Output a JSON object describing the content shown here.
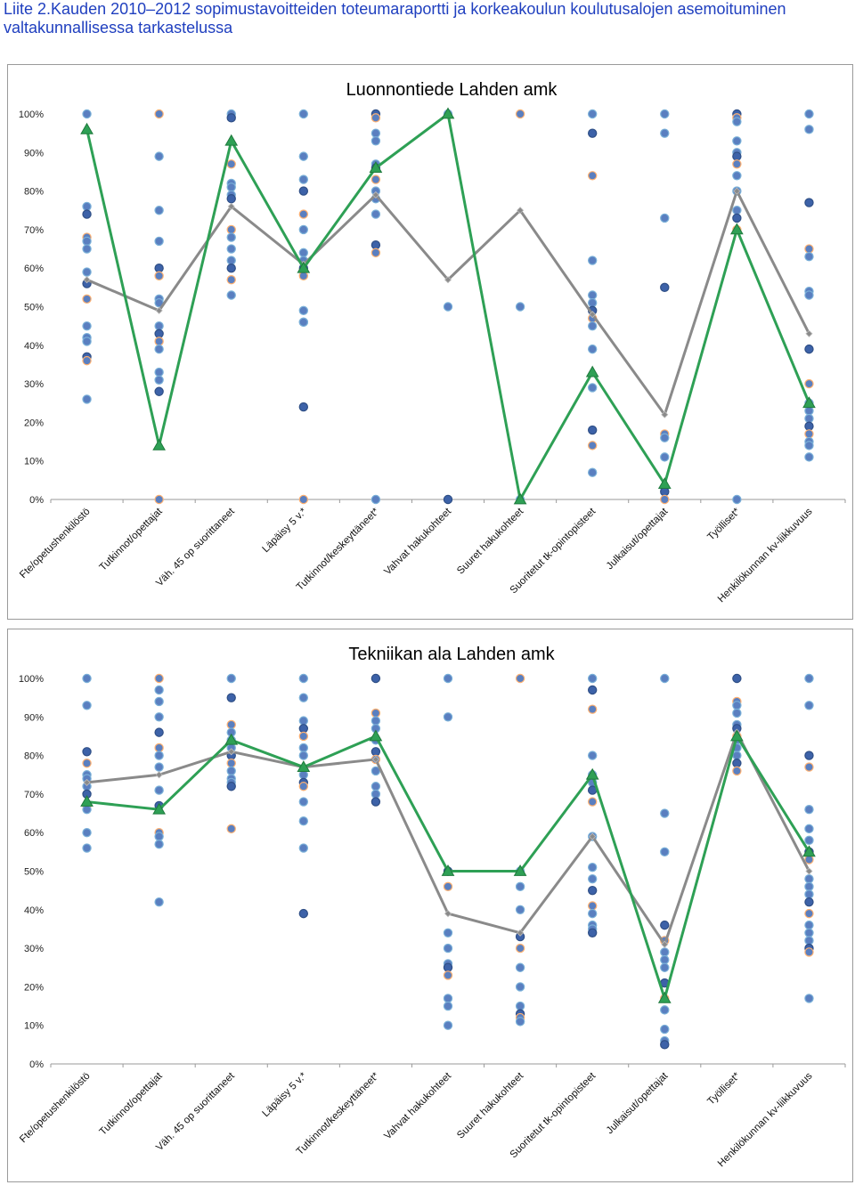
{
  "document": {
    "title_line1": "Liite 2.Kauden 2010–2012 sopimustavoitteiden toteumaraportti ja korkeakoulun koulutusalojen asemoituminen",
    "title_line2": "valtakunnallisessa tarkastelussa"
  },
  "colors": {
    "text_blue": "#1f3fbf",
    "green_line": "#2ea055",
    "gray_line": "#8a8a8a",
    "dot_fill": "#5a7fc0",
    "dot_fill_dark": "#3d62a8",
    "dot_stroke_a": "#7ab0d8",
    "dot_stroke_b": "#ffb070",
    "dot_stroke_c": "#2f4f86"
  },
  "chart_data": [
    {
      "type": "scatter",
      "title": "Luonnontiede Lahden amk",
      "ylim": [
        0,
        100
      ],
      "y_ticks": [
        "0%",
        "10%",
        "20%",
        "30%",
        "40%",
        "50%",
        "60%",
        "70%",
        "80%",
        "90%",
        "100%"
      ],
      "categories": [
        "Fte/opetushenkilöstö",
        "Tutkinnot/opettajat",
        "Väh. 45 op suorittaneet",
        "Läpäisy 5 v.*",
        "Tutkinnot/keskeyttäneet*",
        "Vahvat hakukohteet",
        "Suuret hakukohteet",
        "Suoritetut tk-opintopisteet",
        "Julkaisut/opettajat",
        "Työlliset*",
        "Henkilökunnan kv-liikkuvuus"
      ],
      "green_line": [
        96,
        14,
        93,
        60,
        86,
        100,
        0,
        33,
        4,
        70,
        25
      ],
      "gray_line": [
        57,
        49,
        76,
        61,
        79,
        57,
        75,
        48,
        22,
        80,
        43
      ],
      "points": [
        [
          100,
          76,
          74,
          68,
          67,
          65,
          59,
          56,
          52,
          45,
          42,
          41,
          37,
          36,
          26
        ],
        [
          100,
          89,
          75,
          67,
          60,
          58,
          52,
          51,
          45,
          43,
          41,
          39,
          33,
          31,
          28,
          0
        ],
        [
          100,
          99,
          87,
          82,
          81,
          79,
          78,
          70,
          68,
          65,
          62,
          60,
          57,
          53
        ],
        [
          100,
          89,
          83,
          80,
          74,
          70,
          64,
          62,
          60,
          58,
          49,
          46,
          46,
          24,
          0
        ],
        [
          100,
          99,
          95,
          93,
          87,
          86,
          83,
          80,
          78,
          74,
          66,
          64,
          0
        ],
        [
          100,
          50,
          0
        ],
        [
          100,
          50,
          0
        ],
        [
          100,
          95,
          84,
          62,
          53,
          51,
          49,
          47,
          45,
          39,
          29,
          18,
          14,
          7
        ],
        [
          100,
          95,
          73,
          55,
          17,
          16,
          11,
          3,
          2,
          0
        ],
        [
          100,
          99,
          98,
          93,
          90,
          89,
          87,
          84,
          80,
          75,
          73,
          70,
          0
        ],
        [
          100,
          96,
          77,
          65,
          63,
          54,
          53,
          39,
          30,
          25,
          23,
          21,
          19,
          17,
          15,
          14,
          11
        ]
      ]
    },
    {
      "type": "scatter",
      "title": "Tekniikan ala Lahden amk",
      "ylim": [
        0,
        100
      ],
      "y_ticks": [
        "0%",
        "10%",
        "20%",
        "30%",
        "40%",
        "50%",
        "60%",
        "70%",
        "80%",
        "90%",
        "100%"
      ],
      "categories": [
        "Fte/opetushenkilöstö",
        "Tutkinnot/opettajat",
        "Väh. 45 op suorittaneet",
        "Läpäisy 5 v.*",
        "Tutkinnot/keskeyttäneet*",
        "Vahvat hakukohteet",
        "Suuret hakukohteet",
        "Suoritetut tk-opintopisteet",
        "Julkaisut/opettajat",
        "Työlliset*",
        "Henkilökunnan kv-liikkuvuus"
      ],
      "green_line": [
        68,
        66,
        84,
        77,
        85,
        50,
        50,
        75,
        17,
        85,
        55
      ],
      "gray_line": [
        73,
        75,
        81,
        77,
        79,
        39,
        34,
        59,
        31,
        86,
        50
      ],
      "points": [
        [
          100,
          93,
          81,
          78,
          75,
          74,
          72,
          70,
          67,
          66,
          60,
          56
        ],
        [
          100,
          97,
          94,
          90,
          86,
          82,
          80,
          77,
          71,
          67,
          60,
          59,
          57,
          42
        ],
        [
          100,
          95,
          88,
          86,
          84,
          82,
          80,
          78,
          76,
          74,
          73,
          72,
          61
        ],
        [
          100,
          95,
          89,
          87,
          85,
          82,
          80,
          75,
          73,
          72,
          68,
          63,
          56,
          39
        ],
        [
          100,
          91,
          89,
          87,
          84,
          81,
          79,
          76,
          72,
          70,
          68
        ],
        [
          100,
          90,
          50,
          46,
          34,
          30,
          26,
          25,
          23,
          17,
          15,
          10
        ],
        [
          100,
          50,
          46,
          40,
          33,
          30,
          25,
          20,
          15,
          13,
          12,
          11
        ],
        [
          100,
          97,
          92,
          80,
          75,
          73,
          71,
          68,
          59,
          51,
          48,
          45,
          41,
          39,
          36,
          35,
          34
        ],
        [
          100,
          65,
          55,
          36,
          32,
          29,
          27,
          25,
          21,
          17,
          14,
          9,
          6,
          5
        ],
        [
          100,
          94,
          93,
          91,
          88,
          87,
          85,
          84,
          82,
          80,
          78,
          76
        ],
        [
          100,
          93,
          80,
          77,
          66,
          61,
          58,
          55,
          53,
          48,
          46,
          44,
          42,
          39,
          36,
          34,
          32,
          30,
          29,
          17
        ]
      ]
    }
  ]
}
